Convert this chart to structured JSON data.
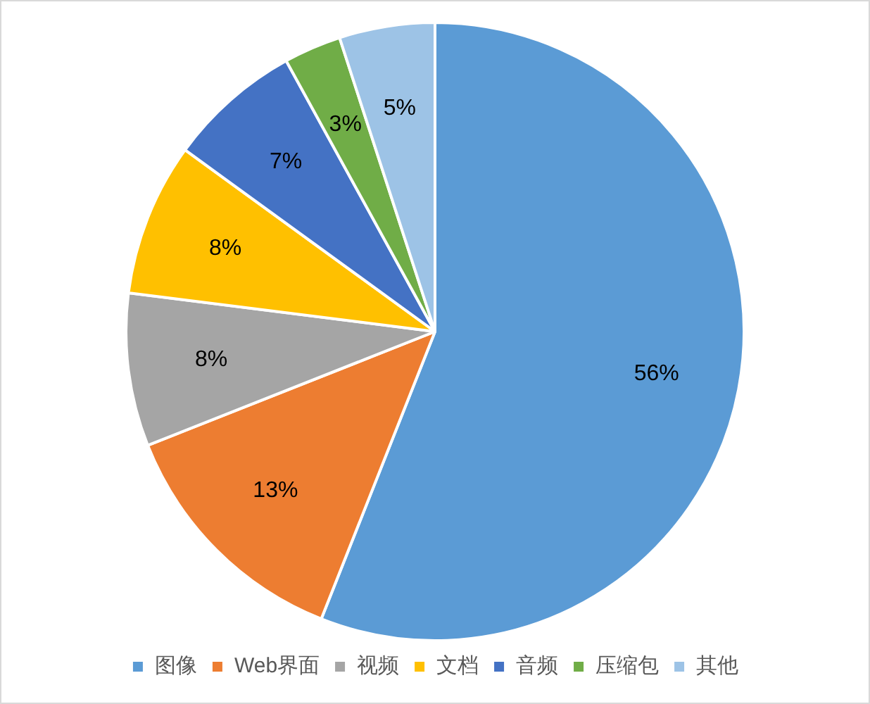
{
  "chart_data": {
    "type": "pie",
    "categories": [
      "图像",
      "Web界面",
      "视频",
      "文档",
      "音频",
      "压缩包",
      "其他"
    ],
    "values": [
      56,
      13,
      8,
      8,
      7,
      3,
      5
    ],
    "colors": [
      "#5b9bd5",
      "#ed7d31",
      "#a5a5a5",
      "#ffc000",
      "#4472c4",
      "#70ad47",
      "#9dc3e6"
    ],
    "value_labels": [
      "56%",
      "13%",
      "8%",
      "8%",
      "7%",
      "3%",
      "5%"
    ],
    "legend": "bottom"
  }
}
